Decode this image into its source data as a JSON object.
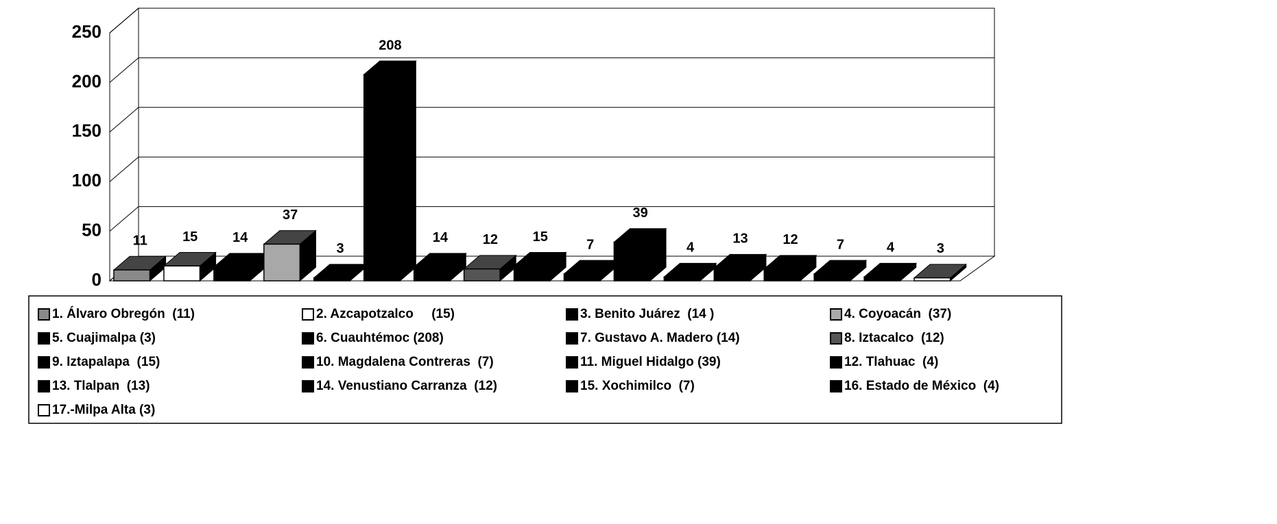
{
  "chart_data": {
    "type": "bar3d",
    "categories": [
      "1. Álvaro Obregón  (11)",
      "2. Azcapotzalco     (15)",
      "3. Benito Juárez  (14 )",
      "4. Coyoacán  (37)",
      "5. Cuajimalpa (3)",
      "6. Cuauhtémoc (208)",
      "7. Gustavo A. Madero (14)",
      "8. Iztacalco  (12)",
      "9. Iztapalapa  (15)",
      "10. Magdalena Contreras  (7)",
      "11. Miguel Hidalgo (39)",
      "12. Tlahuac  (4)",
      "13. Tlalpan  (13)",
      "14. Venustiano Carranza  (12)",
      "15. Xochimilco  (7)",
      "16. Estado de México  (4)",
      "17.-Milpa Alta (3)"
    ],
    "values": [
      11,
      15,
      14,
      37,
      3,
      208,
      14,
      12,
      15,
      7,
      39,
      4,
      13,
      12,
      7,
      4,
      3
    ],
    "colors": [
      "#8a8a8a",
      "#ffffff",
      "#000000",
      "#a8a8a8",
      "#000000",
      "#000000",
      "#000000",
      "#555555",
      "#000000",
      "#000000",
      "#000000",
      "#000000",
      "#000000",
      "#000000",
      "#000000",
      "#000000",
      "#ffffff"
    ],
    "ylim": [
      0,
      250
    ],
    "yticks": [
      0,
      50,
      100,
      150,
      200,
      250
    ],
    "grid": true,
    "legend": "bottom"
  }
}
